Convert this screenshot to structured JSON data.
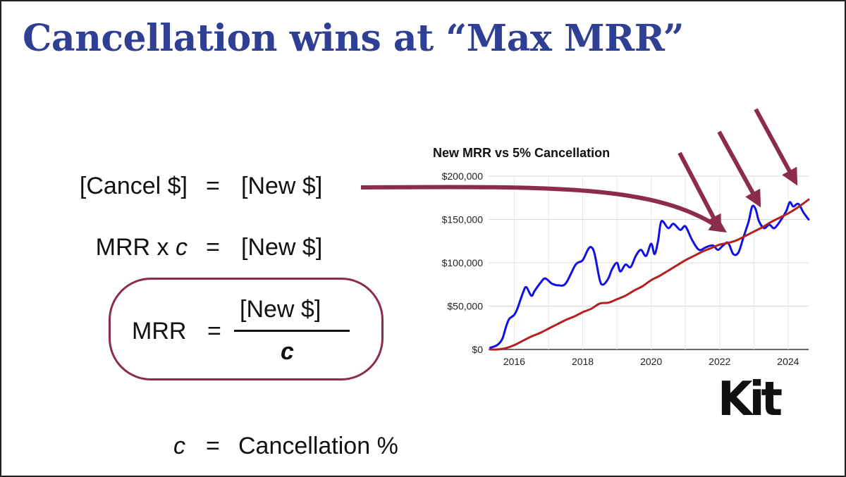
{
  "title": "Cancellation wins at “Max MRR”",
  "equations": {
    "eq1": {
      "lhs": "[Cancel $]",
      "op": "=",
      "rhs": "[New $]"
    },
    "eq2": {
      "lhs_prefix": "MRR x ",
      "lhs_var": "c",
      "op": "=",
      "rhs": "[New $]"
    },
    "formula": {
      "lhs": "MRR",
      "op": "=",
      "numerator": "[New $]",
      "denominator": "c"
    },
    "definition": {
      "symbol": "c",
      "op": "=",
      "text": "Cancellation %"
    }
  },
  "logo": "Kit",
  "colors": {
    "title": "#2f3f94",
    "accent": "#8b2b4e",
    "new_mrr": "#1010e6",
    "cancellation": "#b41f1f"
  },
  "chart_data": {
    "type": "line",
    "title": "New MRR vs 5% Cancellation",
    "x_ticks": [
      "2016",
      "2018",
      "2020",
      "2022",
      "2024"
    ],
    "y_ticks": [
      "$0",
      "$50,000",
      "$100,000",
      "$150,000",
      "$200,000"
    ],
    "xlim": [
      2015.25,
      2024.6
    ],
    "ylim": [
      0,
      200000
    ],
    "series": [
      {
        "name": "New MRR",
        "color": "#1010e6",
        "x": [
          2015.3,
          2015.5,
          2015.65,
          2015.75,
          2015.85,
          2016.0,
          2016.1,
          2016.25,
          2016.35,
          2016.5,
          2016.6,
          2016.75,
          2016.9,
          2017.1,
          2017.3,
          2017.5,
          2017.75,
          2017.85,
          2018.0,
          2018.15,
          2018.25,
          2018.35,
          2018.5,
          2018.6,
          2018.75,
          2018.85,
          2019.0,
          2019.1,
          2019.25,
          2019.4,
          2019.55,
          2019.7,
          2019.85,
          2020.0,
          2020.1,
          2020.2,
          2020.3,
          2020.5,
          2020.65,
          2020.85,
          2021.0,
          2021.2,
          2021.4,
          2021.6,
          2021.8,
          2021.95,
          2022.1,
          2022.25,
          2022.4,
          2022.55,
          2022.7,
          2022.85,
          2022.95,
          2023.05,
          2023.15,
          2023.3,
          2023.45,
          2023.6,
          2023.8,
          2023.95,
          2024.05,
          2024.15,
          2024.3,
          2024.45,
          2024.6
        ],
        "y": [
          2000,
          5000,
          12000,
          25000,
          35000,
          40000,
          48000,
          65000,
          72000,
          62000,
          68000,
          76000,
          82000,
          76000,
          74000,
          76000,
          95000,
          100000,
          103000,
          115000,
          118000,
          110000,
          80000,
          75000,
          82000,
          92000,
          100000,
          90000,
          98000,
          95000,
          108000,
          115000,
          108000,
          122000,
          110000,
          125000,
          148000,
          140000,
          145000,
          138000,
          142000,
          126000,
          115000,
          118000,
          120000,
          115000,
          120000,
          123000,
          110000,
          112000,
          130000,
          148000,
          165000,
          162000,
          148000,
          140000,
          144000,
          140000,
          150000,
          160000,
          170000,
          165000,
          168000,
          158000,
          150000
        ]
      },
      {
        "name": "5% Cancellation",
        "color": "#b41f1f",
        "x": [
          2015.3,
          2015.5,
          2015.75,
          2016.0,
          2016.25,
          2016.5,
          2016.75,
          2017.0,
          2017.25,
          2017.5,
          2017.75,
          2018.0,
          2018.25,
          2018.5,
          2018.75,
          2019.0,
          2019.25,
          2019.5,
          2019.75,
          2020.0,
          2020.25,
          2020.5,
          2020.75,
          2021.0,
          2021.25,
          2021.5,
          2021.75,
          2022.0,
          2022.25,
          2022.5,
          2022.75,
          2023.0,
          2023.25,
          2023.5,
          2023.75,
          2024.0,
          2024.25,
          2024.6
        ],
        "y": [
          0,
          0,
          1500,
          5000,
          10000,
          15000,
          19000,
          24000,
          29000,
          34000,
          38000,
          43000,
          47000,
          53000,
          54000,
          58000,
          62000,
          68000,
          73000,
          80000,
          85000,
          91000,
          97000,
          103000,
          108000,
          113000,
          117000,
          121000,
          123000,
          126000,
          131000,
          136000,
          141000,
          147000,
          152000,
          157000,
          163000,
          173000
        ]
      }
    ]
  }
}
